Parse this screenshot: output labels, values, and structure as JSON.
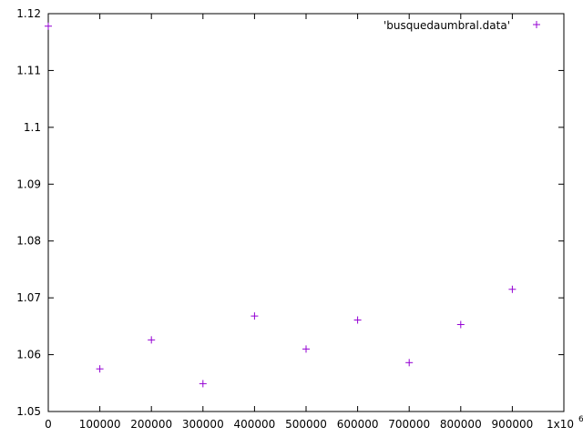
{
  "chart_data": {
    "type": "scatter",
    "legend": {
      "label": "'busquedaumbral.data'",
      "position": "top-right"
    },
    "marker": {
      "symbol": "+",
      "color": "#9400d3"
    },
    "xlim": [
      0,
      1000000
    ],
    "ylim": [
      1.05,
      1.12
    ],
    "grid": false,
    "x_ticks": [
      {
        "value": 0,
        "label": "0"
      },
      {
        "value": 100000,
        "label": "100000"
      },
      {
        "value": 200000,
        "label": "200000"
      },
      {
        "value": 300000,
        "label": "300000"
      },
      {
        "value": 400000,
        "label": "400000"
      },
      {
        "value": 500000,
        "label": "500000"
      },
      {
        "value": 600000,
        "label": "600000"
      },
      {
        "value": 700000,
        "label": "700000"
      },
      {
        "value": 800000,
        "label": "800000"
      },
      {
        "value": 900000,
        "label": "900000"
      },
      {
        "value": 1000000,
        "label": "1x10",
        "sup": "6"
      }
    ],
    "y_ticks": [
      {
        "value": 1.05,
        "label": "1.05"
      },
      {
        "value": 1.06,
        "label": "1.06"
      },
      {
        "value": 1.07,
        "label": "1.07"
      },
      {
        "value": 1.08,
        "label": "1.08"
      },
      {
        "value": 1.09,
        "label": "1.09"
      },
      {
        "value": 1.1,
        "label": "1.1"
      },
      {
        "value": 1.11,
        "label": "1.11"
      },
      {
        "value": 1.12,
        "label": "1.12"
      }
    ],
    "series": [
      {
        "points": [
          {
            "x": 0,
            "y": 1.1178
          },
          {
            "x": 100000,
            "y": 1.0575
          },
          {
            "x": 200000,
            "y": 1.0626
          },
          {
            "x": 300000,
            "y": 1.0549
          },
          {
            "x": 400000,
            "y": 1.0668
          },
          {
            "x": 500000,
            "y": 1.061
          },
          {
            "x": 600000,
            "y": 1.0661
          },
          {
            "x": 700000,
            "y": 1.0586
          },
          {
            "x": 800000,
            "y": 1.0653
          },
          {
            "x": 900000,
            "y": 1.0715
          }
        ]
      }
    ]
  }
}
